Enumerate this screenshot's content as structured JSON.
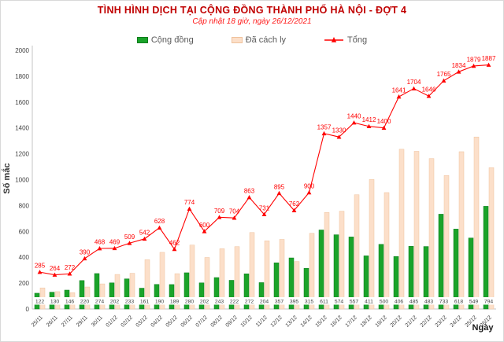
{
  "chart_data": {
    "type": "bar+line",
    "title": "TÌNH HÌNH DỊCH TẠI CỘNG ĐỒNG THÀNH PHỐ HÀ NỘI - ĐỢT 4",
    "subtitle": "Cập nhật 18 giờ, ngày 26/12/2021",
    "xlabel": "Ngày",
    "ylabel": "Số mắc",
    "ylim": [
      0,
      2000
    ],
    "yticks": [
      0,
      200,
      400,
      600,
      800,
      1000,
      1200,
      1400,
      1600,
      1800,
      2000
    ],
    "grid": false,
    "legend_position": "top",
    "categories": [
      "25/11",
      "26/11",
      "27/11",
      "29/11",
      "30/11",
      "01/12",
      "02/12",
      "03/12",
      "04/12",
      "05/12",
      "06/12",
      "07/12",
      "08/12",
      "09/12",
      "10/12",
      "11/12",
      "12/12",
      "13/12",
      "14/12",
      "15/12",
      "16/12",
      "17/12",
      "18/12",
      "19/12",
      "20/12",
      "21/12",
      "22/12",
      "23/12",
      "24/12",
      "25/12",
      "26/12"
    ],
    "series": [
      {
        "name": "Cộng đồng",
        "type": "bar",
        "color": "#1aa32a",
        "border_color": "#0f7d1d",
        "labels_shown": true,
        "values": [
          122,
          130,
          146,
          220,
          274,
          202,
          233,
          161,
          190,
          189,
          280,
          202,
          243,
          222,
          272,
          204,
          357,
          395,
          315,
          611,
          574,
          557,
          411,
          500,
          406,
          485,
          483,
          733,
          618,
          549,
          794
        ]
      },
      {
        "name": "Đã cách ly",
        "type": "bar",
        "color": "#fcdfc9",
        "border_color": "#efc19c",
        "labels_shown": false,
        "values": [
          163,
          134,
          126,
          170,
          194,
          267,
          276,
          381,
          438,
          273,
          494,
          398,
          466,
          482,
          591,
          527,
          538,
          367,
          585,
          746,
          756,
          883,
          1001,
          900,
          1235,
          1219,
          1163,
          1032,
          1216,
          1330,
          1093
        ]
      },
      {
        "name": "Tổng",
        "type": "line",
        "color": "#ff0000",
        "marker": "triangle-up",
        "labels_shown": true,
        "values": [
          285,
          264,
          272,
          390,
          468,
          469,
          509,
          542,
          628,
          462,
          774,
          600,
          709,
          704,
          863,
          731,
          895,
          762,
          900,
          1357,
          1330,
          1440,
          1412,
          1400,
          1641,
          1704,
          1646,
          1765,
          1834,
          1879,
          1887
        ]
      }
    ]
  },
  "colors": {
    "title": "#c00000",
    "subtitle": "#ff0000",
    "line": "#ff0000",
    "community_bar": "#1aa32a",
    "quarantine_bar": "#fcdfc9",
    "axis_text": "#404040"
  }
}
